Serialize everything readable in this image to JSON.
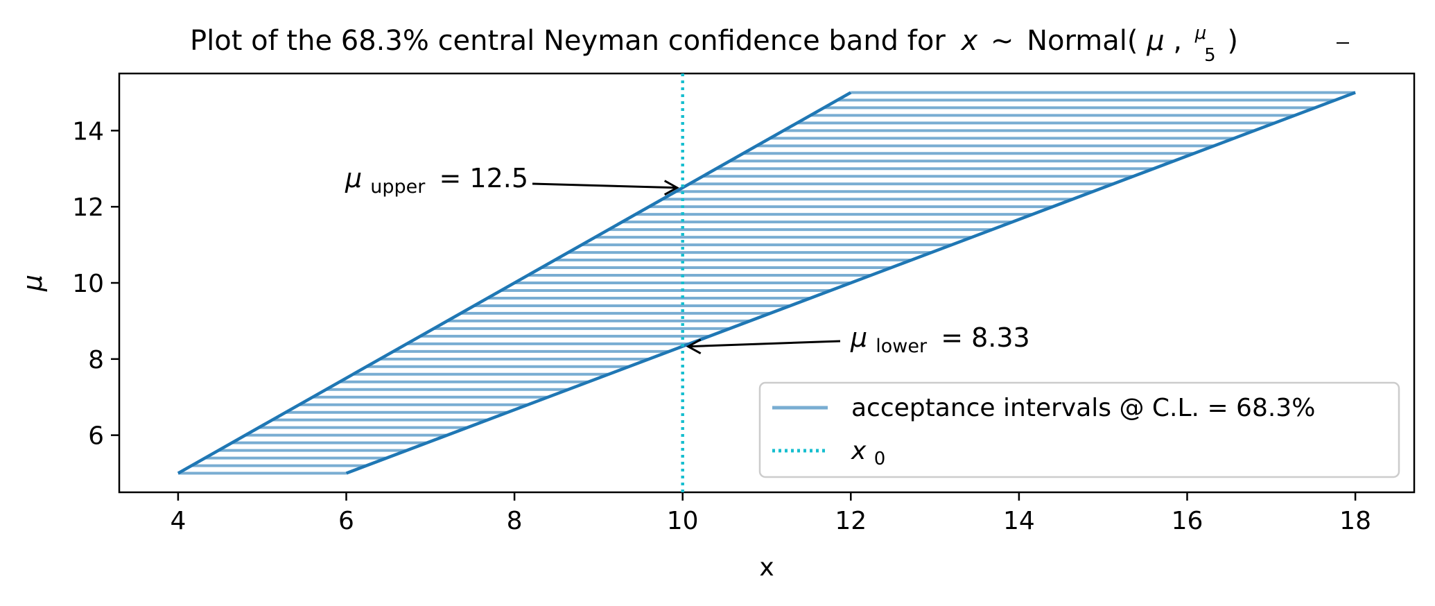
{
  "chart_data": {
    "type": "line",
    "title": {
      "text": "Plot of the 68.3% central Neyman confidence band for",
      "var": "x",
      "tilde": "~",
      "dist": "Normal(",
      "mu": "μ",
      "comma": ",",
      "frac_num": "μ",
      "frac_den": "5",
      "close": ")"
    },
    "xlabel": "x",
    "ylabel": "μ",
    "xlim": [
      3.3,
      18.7
    ],
    "ylim": [
      4.5,
      15.5
    ],
    "xticks": [
      4,
      6,
      8,
      10,
      12,
      14,
      16,
      18
    ],
    "yticks": [
      6,
      8,
      10,
      12,
      14
    ],
    "grid": false,
    "colors": {
      "band": "#1f77b4",
      "x0": "#17becf"
    },
    "mu_range": [
      5,
      15
    ],
    "mu_step": 0.2,
    "band_note": "interval bounds per mu",
    "series": [
      {
        "name": "acceptance intervals @ C.L. = 68.3%",
        "type": "horizontal-segments",
        "lower_x": [
          4,
          12
        ],
        "upper_x": [
          6,
          18
        ],
        "mu": [
          5,
          15
        ]
      },
      {
        "name": "x0",
        "type": "vline",
        "x": 10
      }
    ],
    "annotations": [
      {
        "sym": "μ",
        "sub": "upper",
        "text": "= 12.5",
        "point": [
          10,
          12.5
        ],
        "anchor": "left-of-point"
      },
      {
        "sym": "μ",
        "sub": "lower",
        "text": "= 8.33",
        "point": [
          10,
          8.33
        ],
        "anchor": "right-of-point"
      }
    ],
    "legend": {
      "placement": "lower right",
      "entries": [
        {
          "label": "acceptance intervals @ C.L. = 68.3%",
          "style": "solid"
        },
        {
          "label_sym": "x",
          "label_sub": "0",
          "style": "dotted"
        }
      ]
    }
  }
}
